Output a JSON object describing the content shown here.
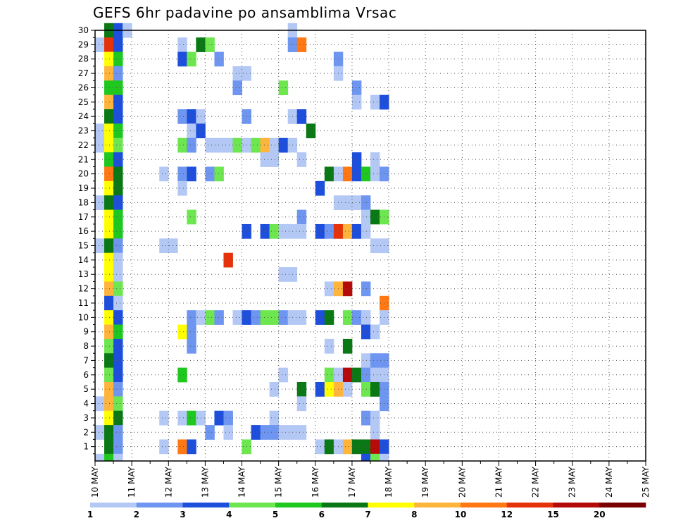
{
  "title": "GEFS 6hr padavine po ansamblima Vrsac",
  "chart_data": {
    "type": "heatmap",
    "title": "GEFS 6hr padavine po ansamblima Vrsac",
    "x_tick_labels": [
      "10 MAY",
      "11 MAY",
      "12 MAY",
      "13 MAY",
      "14 MAY",
      "15 MAY",
      "16 MAY",
      "17 MAY",
      "18 MAY",
      "19 MAY",
      "20 MAY",
      "21 MAY",
      "22 MAY",
      "23 MAY",
      "24 MAY",
      "25 MAY"
    ],
    "x_range_days": [
      0,
      15
    ],
    "step_hours": 6,
    "y_tick_labels": [
      1,
      2,
      3,
      4,
      5,
      6,
      7,
      8,
      9,
      10,
      11,
      12,
      13,
      14,
      15,
      16,
      17,
      18,
      19,
      20,
      21,
      22,
      23,
      24,
      25,
      26,
      27,
      28,
      29,
      30
    ],
    "y_range": [
      0,
      30
    ],
    "grid": true,
    "colorbar": {
      "position": "bottom",
      "levels": [
        1,
        2,
        3,
        4,
        5,
        6,
        7,
        8,
        10,
        12,
        15,
        20
      ],
      "colors": [
        "#b4c8f5",
        "#6e96f0",
        "#1e4fdc",
        "#6ee650",
        "#1ec81e",
        "#0a7814",
        "#ffff00",
        "#ffb43c",
        "#ff7814",
        "#e6320a",
        "#b40a0a",
        "#780000"
      ]
    },
    "colors": [
      "#b4c8f5",
      "#6e96f0",
      "#1e4fdc",
      "#6ee650",
      "#1ec81e",
      "#0a7814",
      "#ffff00",
      "#ffb43c",
      "#ff7814",
      "#e6320a",
      "#b40a0a",
      "#780000"
    ],
    "cells": [
      [
        30,
        1,
        5
      ],
      [
        30,
        2,
        2
      ],
      [
        30,
        3,
        0
      ],
      [
        30,
        21,
        0
      ],
      [
        29,
        0,
        0
      ],
      [
        29,
        1,
        9
      ],
      [
        29,
        2,
        2
      ],
      [
        29,
        9,
        0
      ],
      [
        29,
        11,
        5
      ],
      [
        29,
        12,
        3
      ],
      [
        29,
        21,
        1
      ],
      [
        29,
        22,
        8
      ],
      [
        28,
        1,
        6
      ],
      [
        28,
        2,
        4
      ],
      [
        28,
        9,
        2
      ],
      [
        28,
        10,
        3
      ],
      [
        28,
        13,
        1
      ],
      [
        28,
        26,
        1
      ],
      [
        27,
        1,
        7
      ],
      [
        27,
        2,
        1
      ],
      [
        27,
        15,
        0
      ],
      [
        27,
        16,
        0
      ],
      [
        27,
        26,
        0
      ],
      [
        26,
        1,
        4
      ],
      [
        26,
        2,
        4
      ],
      [
        26,
        15,
        1
      ],
      [
        26,
        20,
        3
      ],
      [
        26,
        28,
        1
      ],
      [
        25,
        1,
        7
      ],
      [
        25,
        2,
        2
      ],
      [
        25,
        28,
        0
      ],
      [
        25,
        30,
        0
      ],
      [
        25,
        31,
        2
      ],
      [
        24,
        1,
        5
      ],
      [
        24,
        2,
        2
      ],
      [
        24,
        9,
        1
      ],
      [
        24,
        10,
        2
      ],
      [
        24,
        11,
        0
      ],
      [
        24,
        16,
        1
      ],
      [
        24,
        21,
        0
      ],
      [
        24,
        22,
        2
      ],
      [
        23,
        0,
        0
      ],
      [
        23,
        1,
        6
      ],
      [
        23,
        2,
        4
      ],
      [
        23,
        10,
        0
      ],
      [
        23,
        11,
        2
      ],
      [
        23,
        23,
        5
      ],
      [
        22,
        0,
        0
      ],
      [
        22,
        1,
        6
      ],
      [
        22,
        2,
        3
      ],
      [
        22,
        9,
        3
      ],
      [
        22,
        10,
        1
      ],
      [
        22,
        12,
        0
      ],
      [
        22,
        13,
        0
      ],
      [
        22,
        14,
        0
      ],
      [
        22,
        15,
        3
      ],
      [
        22,
        16,
        0
      ],
      [
        22,
        17,
        3
      ],
      [
        22,
        18,
        7
      ],
      [
        22,
        19,
        0
      ],
      [
        22,
        20,
        2
      ],
      [
        22,
        21,
        0
      ],
      [
        21,
        1,
        4
      ],
      [
        21,
        2,
        2
      ],
      [
        21,
        18,
        0
      ],
      [
        21,
        19,
        0
      ],
      [
        21,
        22,
        0
      ],
      [
        21,
        28,
        2
      ],
      [
        21,
        30,
        0
      ],
      [
        20,
        1,
        8
      ],
      [
        20,
        2,
        5
      ],
      [
        20,
        7,
        0
      ],
      [
        20,
        9,
        1
      ],
      [
        20,
        10,
        2
      ],
      [
        20,
        12,
        1
      ],
      [
        20,
        13,
        3
      ],
      [
        20,
        25,
        5
      ],
      [
        20,
        26,
        0
      ],
      [
        20,
        27,
        8
      ],
      [
        20,
        28,
        2
      ],
      [
        20,
        29,
        4
      ],
      [
        20,
        30,
        0
      ],
      [
        20,
        31,
        1
      ],
      [
        19,
        1,
        6
      ],
      [
        19,
        2,
        5
      ],
      [
        19,
        9,
        0
      ],
      [
        19,
        24,
        2
      ],
      [
        18,
        0,
        0
      ],
      [
        18,
        1,
        5
      ],
      [
        18,
        2,
        2
      ],
      [
        18,
        26,
        0
      ],
      [
        18,
        27,
        0
      ],
      [
        18,
        28,
        0
      ],
      [
        18,
        29,
        1
      ],
      [
        17,
        1,
        6
      ],
      [
        17,
        2,
        4
      ],
      [
        17,
        10,
        3
      ],
      [
        17,
        22,
        1
      ],
      [
        17,
        29,
        0
      ],
      [
        17,
        30,
        5
      ],
      [
        17,
        31,
        3
      ],
      [
        16,
        1,
        6
      ],
      [
        16,
        2,
        4
      ],
      [
        16,
        16,
        2
      ],
      [
        16,
        18,
        2
      ],
      [
        16,
        19,
        3
      ],
      [
        16,
        20,
        0
      ],
      [
        16,
        21,
        0
      ],
      [
        16,
        22,
        0
      ],
      [
        16,
        24,
        2
      ],
      [
        16,
        25,
        1
      ],
      [
        16,
        26,
        9
      ],
      [
        16,
        27,
        7
      ],
      [
        16,
        28,
        2
      ],
      [
        16,
        29,
        0
      ],
      [
        15,
        0,
        0
      ],
      [
        15,
        1,
        5
      ],
      [
        15,
        2,
        1
      ],
      [
        15,
        7,
        0
      ],
      [
        15,
        8,
        0
      ],
      [
        15,
        30,
        0
      ],
      [
        15,
        31,
        0
      ],
      [
        14,
        1,
        6
      ],
      [
        14,
        2,
        0
      ],
      [
        14,
        14,
        9
      ],
      [
        13,
        1,
        6
      ],
      [
        13,
        2,
        0
      ],
      [
        13,
        20,
        0
      ],
      [
        13,
        21,
        0
      ],
      [
        12,
        1,
        7
      ],
      [
        12,
        2,
        3
      ],
      [
        12,
        25,
        0
      ],
      [
        12,
        26,
        7
      ],
      [
        12,
        27,
        10
      ],
      [
        12,
        29,
        1
      ],
      [
        11,
        1,
        2
      ],
      [
        11,
        2,
        0
      ],
      [
        11,
        31,
        8
      ],
      [
        10,
        1,
        6
      ],
      [
        10,
        2,
        2
      ],
      [
        10,
        10,
        1
      ],
      [
        10,
        11,
        0
      ],
      [
        10,
        12,
        3
      ],
      [
        10,
        13,
        1
      ],
      [
        10,
        15,
        0
      ],
      [
        10,
        16,
        2
      ],
      [
        10,
        17,
        1
      ],
      [
        10,
        18,
        3
      ],
      [
        10,
        19,
        3
      ],
      [
        10,
        20,
        1
      ],
      [
        10,
        21,
        0
      ],
      [
        10,
        22,
        0
      ],
      [
        10,
        24,
        2
      ],
      [
        10,
        25,
        5
      ],
      [
        10,
        27,
        3
      ],
      [
        10,
        28,
        1
      ],
      [
        10,
        29,
        0
      ],
      [
        10,
        31,
        0
      ],
      [
        9,
        1,
        7
      ],
      [
        9,
        2,
        4
      ],
      [
        9,
        9,
        6
      ],
      [
        9,
        10,
        1
      ],
      [
        9,
        29,
        2
      ],
      [
        9,
        30,
        0
      ],
      [
        8,
        1,
        3
      ],
      [
        8,
        2,
        2
      ],
      [
        8,
        10,
        1
      ],
      [
        8,
        25,
        0
      ],
      [
        8,
        27,
        5
      ],
      [
        7,
        1,
        5
      ],
      [
        7,
        2,
        2
      ],
      [
        7,
        29,
        0
      ],
      [
        7,
        30,
        1
      ],
      [
        7,
        31,
        1
      ],
      [
        6,
        1,
        3
      ],
      [
        6,
        2,
        2
      ],
      [
        6,
        9,
        4
      ],
      [
        6,
        20,
        0
      ],
      [
        6,
        25,
        3
      ],
      [
        6,
        26,
        0
      ],
      [
        6,
        27,
        10
      ],
      [
        6,
        28,
        5
      ],
      [
        6,
        29,
        1
      ],
      [
        6,
        30,
        0
      ],
      [
        6,
        31,
        0
      ],
      [
        5,
        1,
        7
      ],
      [
        5,
        2,
        1
      ],
      [
        5,
        19,
        0
      ],
      [
        5,
        22,
        5
      ],
      [
        5,
        24,
        2
      ],
      [
        5,
        25,
        6
      ],
      [
        5,
        26,
        7
      ],
      [
        5,
        27,
        0
      ],
      [
        5,
        29,
        3
      ],
      [
        5,
        30,
        5
      ],
      [
        5,
        31,
        1
      ],
      [
        4,
        0,
        0
      ],
      [
        4,
        1,
        7
      ],
      [
        4,
        2,
        3
      ],
      [
        4,
        22,
        0
      ],
      [
        4,
        31,
        1
      ],
      [
        3,
        1,
        6
      ],
      [
        3,
        2,
        5
      ],
      [
        3,
        7,
        0
      ],
      [
        3,
        9,
        0
      ],
      [
        3,
        10,
        4
      ],
      [
        3,
        11,
        0
      ],
      [
        3,
        13,
        2
      ],
      [
        3,
        14,
        1
      ],
      [
        3,
        19,
        0
      ],
      [
        3,
        29,
        1
      ],
      [
        3,
        30,
        0
      ],
      [
        2,
        0,
        0
      ],
      [
        2,
        1,
        5
      ],
      [
        2,
        2,
        1
      ],
      [
        2,
        12,
        1
      ],
      [
        2,
        14,
        0
      ],
      [
        2,
        17,
        2
      ],
      [
        2,
        18,
        1
      ],
      [
        2,
        19,
        1
      ],
      [
        2,
        20,
        0
      ],
      [
        2,
        21,
        0
      ],
      [
        2,
        22,
        0
      ],
      [
        2,
        30,
        0
      ],
      [
        1,
        1,
        5
      ],
      [
        1,
        2,
        1
      ],
      [
        1,
        7,
        0
      ],
      [
        1,
        9,
        8
      ],
      [
        1,
        10,
        2
      ],
      [
        1,
        16,
        3
      ],
      [
        1,
        24,
        0
      ],
      [
        1,
        25,
        5
      ],
      [
        1,
        26,
        0
      ],
      [
        1,
        27,
        7
      ],
      [
        1,
        28,
        5
      ],
      [
        1,
        29,
        5
      ],
      [
        1,
        30,
        10
      ],
      [
        1,
        31,
        2
      ],
      [
        0,
        0,
        0
      ],
      [
        0,
        1,
        4
      ],
      [
        0,
        2,
        0
      ],
      [
        0,
        29,
        2
      ],
      [
        0,
        30,
        3
      ],
      [
        0,
        31,
        0
      ]
    ],
    "cells_format": "[member, time_step_index, color_class_index]"
  }
}
